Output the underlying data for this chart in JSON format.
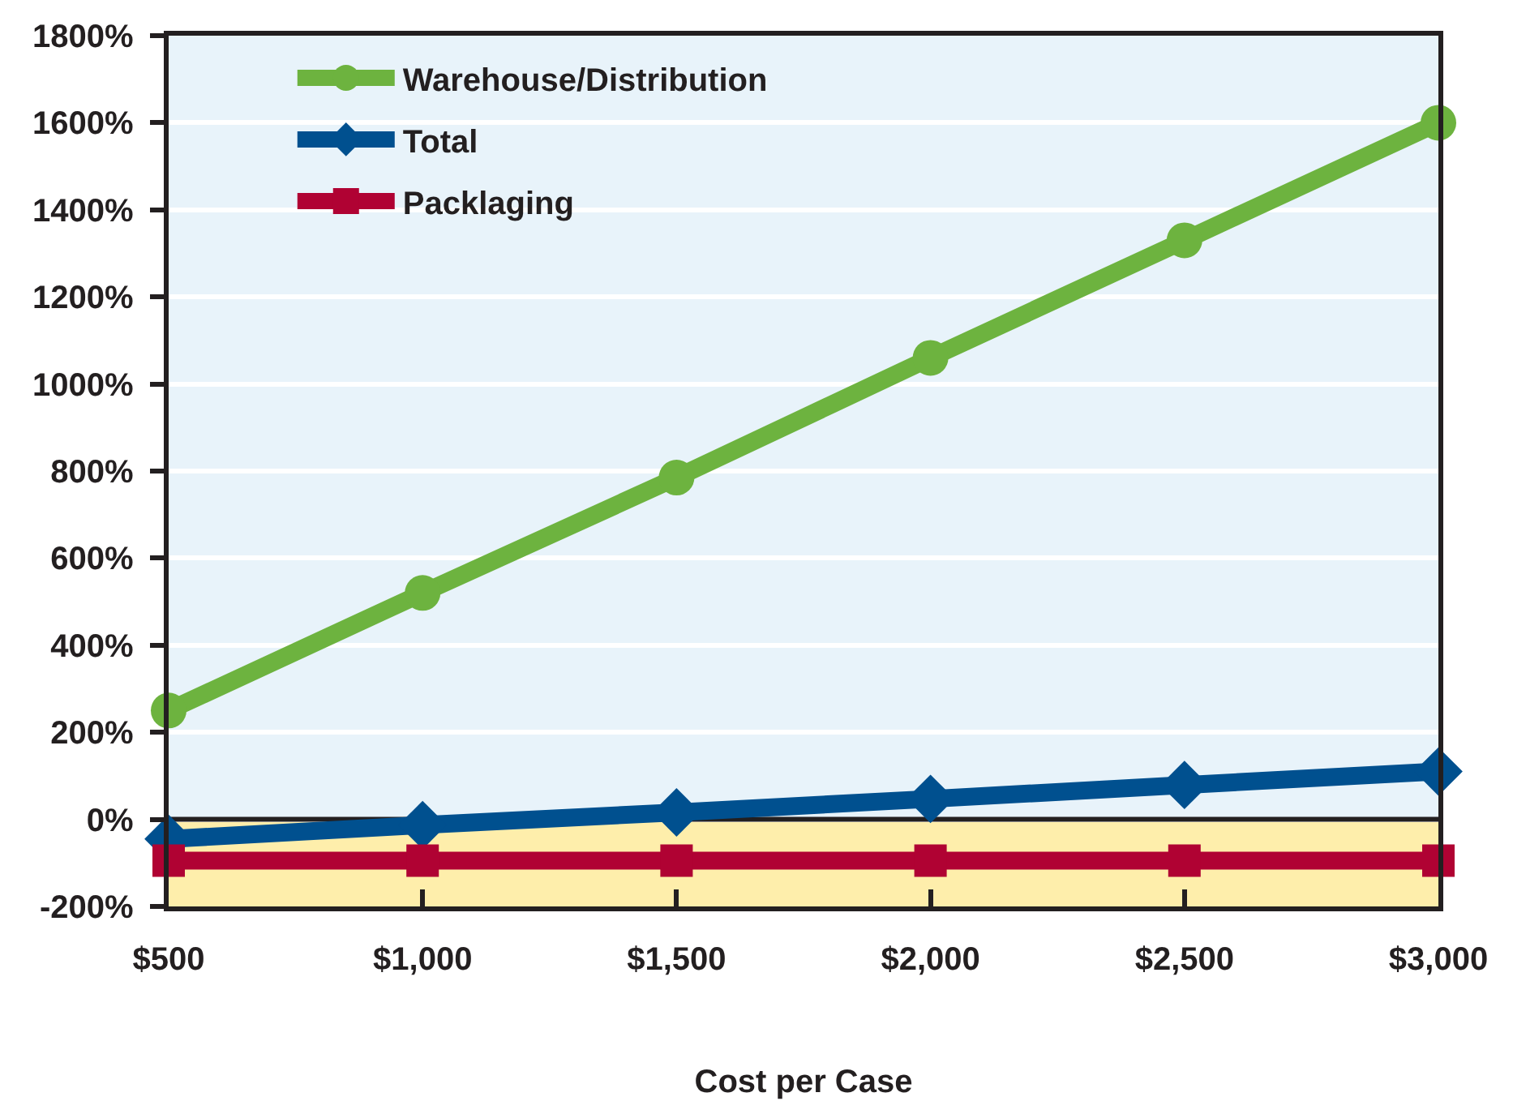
{
  "chart_data": {
    "type": "line",
    "xlabel": "Cost per Case",
    "x": [
      500,
      1000,
      1500,
      2000,
      2500,
      3000
    ],
    "xlim": [
      500,
      3000
    ],
    "xticks": [
      {
        "value": 500,
        "label": "$500"
      },
      {
        "value": 1000,
        "label": "$1,000"
      },
      {
        "value": 1500,
        "label": "$1,500"
      },
      {
        "value": 2000,
        "label": "$2,000"
      },
      {
        "value": 2500,
        "label": "$2,500"
      },
      {
        "value": 3000,
        "label": "$3,000"
      }
    ],
    "ylim": [
      -200,
      1800
    ],
    "yticks": [
      {
        "value": -200,
        "label": "-200%"
      },
      {
        "value": 0,
        "label": "0%"
      },
      {
        "value": 200,
        "label": "200%"
      },
      {
        "value": 400,
        "label": "400%"
      },
      {
        "value": 600,
        "label": "600%"
      },
      {
        "value": 800,
        "label": "800%"
      },
      {
        "value": 1000,
        "label": "1000%"
      },
      {
        "value": 1200,
        "label": "1200%"
      },
      {
        "value": 1400,
        "label": "1400%"
      },
      {
        "value": 1600,
        "label": "1600%"
      },
      {
        "value": 1800,
        "label": "1800%"
      }
    ],
    "series": [
      {
        "name": "Warehouse/Distribution",
        "color": "#6db33f",
        "marker": "circle",
        "values": [
          250,
          520,
          785,
          1060,
          1330,
          1600
        ]
      },
      {
        "name": "Total",
        "color": "#00508f",
        "marker": "diamond",
        "values": [
          -45,
          -13,
          16,
          47,
          79,
          110
        ]
      },
      {
        "name": "Packlaging",
        "color": "#b00233",
        "marker": "square",
        "values": [
          -95,
          -95,
          -95,
          -95,
          -95,
          -95
        ]
      }
    ],
    "bands": [
      {
        "axis": "y",
        "from": 0,
        "to": 1800,
        "color": "#e8f3fa"
      },
      {
        "axis": "y",
        "from": -200,
        "to": 0,
        "color": "#feeeab"
      }
    ],
    "ref_lines": [
      {
        "axis": "y",
        "value": 0,
        "color": "#231f20"
      }
    ],
    "grid": "y",
    "legend": "top left",
    "line_style": "solid"
  }
}
